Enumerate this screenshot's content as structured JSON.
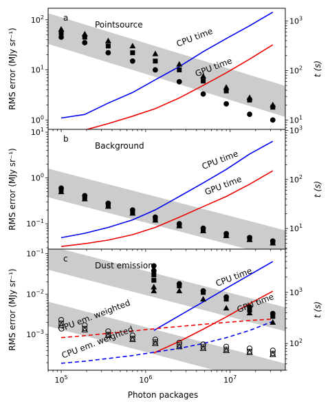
{
  "chart_data": {
    "type": "scatter",
    "x_label": "Photon packages",
    "x_scale": "log",
    "x_range": [
      70000,
      45000000
    ],
    "x_ticks": [
      {
        "value": 100000,
        "label": "10^5"
      },
      {
        "value": 1000000,
        "label": "10^6"
      },
      {
        "value": 10000000,
        "label": "10^7"
      }
    ],
    "colors": {
      "cpu": "#0000ee",
      "gpu": "#ee0000",
      "band": "#cccccc",
      "markers": "#000000"
    },
    "panels": [
      {
        "letter": "a",
        "title": "Pointsource",
        "ylabel_left": "RMS error (MJy sr⁻¹)",
        "ylabel_right": "t (s)",
        "y_left_range": [
          0.65,
          170
        ],
        "y_left_ticks": [
          {
            "value": 1,
            "label": "10^0"
          },
          {
            "value": 10,
            "label": "10^1"
          },
          {
            "value": 100,
            "label": "10^2"
          }
        ],
        "y_right_range": [
          6.5,
          1800
        ],
        "y_right_ticks": [
          {
            "value": 10,
            "label": "10^1"
          },
          {
            "value": 100,
            "label": "10^2"
          },
          {
            "value": 1000,
            "label": "10^3"
          }
        ],
        "band": {
          "x": [
            70000,
            45000000
          ],
          "upper": [
            135,
            4.8
          ],
          "lower": [
            33,
            1.15
          ]
        },
        "series": [
          {
            "name": "CPU time",
            "kind": "line",
            "axis": "right",
            "color": "cpu",
            "x": [
              100000,
              190000,
              360000,
              700000,
              1300000,
              2500000,
              4800000,
              9000000,
              17000000,
              32000000
            ],
            "y": [
              11,
              13,
              22,
              36,
              65,
              120,
              240,
              440,
              800,
              1500
            ]
          },
          {
            "name": "GPU time",
            "kind": "line",
            "axis": "right",
            "color": "gpu",
            "x": [
              100000,
              190000,
              360000,
              700000,
              1300000,
              2500000,
              4800000,
              9000000,
              17000000,
              32000000
            ],
            "y": [
              5.6,
              6.3,
              8.5,
              12,
              17,
              28,
              50,
              90,
              170,
              330
            ]
          },
          {
            "kind": "markers",
            "shape": "circle",
            "axis": "left",
            "x": [
              100000,
              190000,
              360000,
              700000,
              1300000,
              2500000,
              4800000,
              9000000,
              17000000,
              32000000
            ],
            "y": [
              45,
              35,
              22,
              15,
              10,
              5.8,
              3.3,
              2.1,
              1.3,
              1.0
            ]
          },
          {
            "kind": "markers",
            "shape": "square",
            "axis": "left",
            "x": [
              100000,
              190000,
              360000,
              700000,
              1300000,
              2500000,
              4800000,
              9000000,
              17000000,
              32000000
            ],
            "y": [
              55,
              45,
              30,
              22,
              15,
              10,
              6,
              3.8,
              2.5,
              1.8
            ]
          },
          {
            "kind": "markers",
            "shape": "triangle",
            "axis": "left",
            "x": [
              100000,
              190000,
              360000,
              700000,
              1300000,
              2500000,
              4800000,
              9000000,
              17000000,
              32000000
            ],
            "y": [
              65,
              52,
              38,
              30,
              21,
              13,
              7.5,
              4.5,
              2.8,
              2.0
            ]
          }
        ],
        "annotations": [
          {
            "text": "CPU time",
            "color": "cpu",
            "x": 2400000,
            "y": 300
          },
          {
            "text": "GPU time",
            "color": "gpu",
            "x": 4000000,
            "y": 75
          }
        ]
      },
      {
        "letter": "b",
        "title": "Background",
        "ylabel_left": "RMS error (MJy sr⁻¹)",
        "ylabel_right": "t (s)",
        "y_left_range": [
          0.028,
          11.5
        ],
        "y_left_ticks": [
          {
            "value": 0.1,
            "label": "10^-1"
          },
          {
            "value": 1,
            "label": "10^0"
          },
          {
            "value": 10,
            "label": "10^1"
          }
        ],
        "y_right_range": [
          3.8,
          1050
        ],
        "y_right_ticks": [
          {
            "value": 10,
            "label": "10^1"
          },
          {
            "value": 100,
            "label": "10^2"
          },
          {
            "value": 1000,
            "label": "10^3"
          }
        ],
        "band": {
          "x": [
            70000,
            45000000
          ],
          "upper": [
            1.6,
            0.072
          ],
          "lower": [
            0.38,
            0.017
          ]
        },
        "series": [
          {
            "name": "CPU time",
            "kind": "line",
            "axis": "right",
            "color": "cpu",
            "x": [
              100000,
              190000,
              360000,
              700000,
              1300000,
              2500000,
              4800000,
              9000000,
              17000000,
              32000000
            ],
            "y": [
              6.5,
              8,
              10.5,
              15,
              24,
              45,
              85,
              160,
              330,
              600
            ]
          },
          {
            "name": "GPU time",
            "kind": "line",
            "axis": "right",
            "color": "gpu",
            "x": [
              100000,
              190000,
              360000,
              700000,
              1300000,
              2500000,
              4800000,
              9000000,
              17000000,
              32000000
            ],
            "y": [
              4.3,
              4.9,
              5.8,
              7.5,
              10.5,
              17,
              28,
              45,
              80,
              150
            ]
          },
          {
            "kind": "markers",
            "shape": "circle",
            "axis": "left",
            "x": [
              100000,
              190000,
              360000,
              700000,
              1300000,
              2500000,
              4800000,
              9000000,
              17000000,
              32000000
            ],
            "y": [
              0.6,
              0.41,
              0.28,
              0.2,
              0.14,
              0.1,
              0.08,
              0.061,
              0.05,
              0.042
            ]
          },
          {
            "kind": "markers",
            "shape": "square",
            "axis": "left",
            "x": [
              100000,
              190000,
              360000,
              700000,
              1300000,
              2500000,
              4800000,
              9000000,
              17000000,
              32000000
            ],
            "y": [
              0.55,
              0.38,
              0.26,
              0.18,
              0.13,
              0.095,
              0.075,
              0.058,
              0.048,
              0.04
            ]
          },
          {
            "kind": "markers",
            "shape": "triangle",
            "axis": "left",
            "x": [
              100000,
              190000,
              360000,
              700000,
              1300000,
              2500000,
              4800000,
              9000000,
              17000000,
              32000000
            ],
            "y": [
              0.5,
              0.35,
              0.24,
              0.17,
              0.12,
              0.09,
              0.07,
              0.055,
              0.045,
              0.038
            ]
          }
        ],
        "annotations": [
          {
            "text": "CPU time",
            "color": "cpu",
            "x": 4800000,
            "y": 160
          },
          {
            "text": "GPU time",
            "color": "gpu",
            "x": 5200000,
            "y": 48
          }
        ]
      },
      {
        "letter": "c",
        "title": "Dust emission",
        "ylabel_left": "RMS error (MJy sr⁻¹)",
        "ylabel_right": "t (s)",
        "y_left_range": [
          0.00013,
          0.13
        ],
        "y_left_ticks": [
          {
            "value": 0.001,
            "label": "10^-3"
          },
          {
            "value": 0.01,
            "label": "10^-2"
          },
          {
            "value": 0.1,
            "label": "10^-1"
          }
        ],
        "y_right_range": [
          30,
          7000
        ],
        "y_right_ticks": [
          {
            "value": 100,
            "label": "10^2"
          },
          {
            "value": 1000,
            "label": "10^3"
          }
        ],
        "bands": [
          {
            "x": [
              70000,
              45000000
            ],
            "upper": [
              0.16,
              0.0047
            ],
            "lower": [
              0.04,
              0.0012
            ]
          },
          {
            "x": [
              70000,
              45000000
            ],
            "upper": [
              0.0065,
              0.00019
            ],
            "lower": [
              0.0016,
              4.5e-05
            ]
          }
        ],
        "series": [
          {
            "name": "CPU time",
            "kind": "line",
            "axis": "right",
            "color": "cpu",
            "x": [
              1250000,
              2500000,
              4800000,
              9000000,
              17000000,
              32000000
            ],
            "y": [
              180,
              350,
              650,
              1200,
              2200,
              4000
            ]
          },
          {
            "name": "GPU time",
            "kind": "line",
            "axis": "right",
            "color": "gpu",
            "x": [
              1250000,
              2500000,
              4800000,
              9000000,
              17000000,
              32000000
            ],
            "y": [
              65,
              110,
              190,
              330,
              600,
              1050
            ]
          },
          {
            "name": "GPU em. weighted",
            "kind": "dashed",
            "axis": "right",
            "color": "gpu",
            "x": [
              100000,
              190000,
              360000,
              700000,
              1300000,
              2500000,
              4800000,
              9000000,
              17000000,
              32000000
            ],
            "y": [
              130,
              142,
              158,
              175,
              195,
              215,
              237,
              258,
              282,
              300
            ]
          },
          {
            "name": "CPU em. weighted",
            "kind": "dashed",
            "axis": "right",
            "color": "cpu",
            "x": [
              100000,
              190000,
              360000,
              700000,
              1300000,
              2500000,
              4800000,
              9000000,
              17000000,
              32000000
            ],
            "y": [
              41,
              45,
              51,
              58,
              68,
              80,
              100,
              130,
              180,
              270
            ]
          },
          {
            "kind": "markers",
            "shape": "circle",
            "axis": "left",
            "x": [
              1250000,
              1250000,
              2500000,
              4800000,
              9000000,
              17000000,
              32000000
            ],
            "y": [
              0.05,
              0.038,
              0.018,
              0.012,
              0.0085,
              0.0048,
              0.0033
            ]
          },
          {
            "kind": "markers",
            "shape": "square",
            "axis": "left",
            "x": [
              1250000,
              1250000,
              2500000,
              4800000,
              9000000,
              17000000,
              32000000
            ],
            "y": [
              0.03,
              0.022,
              0.016,
              0.011,
              0.0075,
              0.004,
              0.0028
            ]
          },
          {
            "kind": "markers",
            "shape": "triangle",
            "axis": "left",
            "x": [
              1250000,
              1250000,
              2500000,
              4800000,
              9000000,
              17000000,
              32000000
            ],
            "y": [
              0.015,
              0.012,
              0.012,
              0.0075,
              0.0045,
              0.0034,
              0.002
            ]
          },
          {
            "kind": "markers",
            "shape": "open-circle",
            "axis": "left",
            "x": [
              100000,
              190000,
              360000,
              700000,
              1300000,
              2500000,
              4800000,
              9000000,
              17000000,
              32000000
            ],
            "y": [
              0.0023,
              0.0017,
              0.0012,
              0.00095,
              0.00075,
              0.00063,
              0.00057,
              0.0005,
              0.00045,
              0.0004
            ]
          },
          {
            "kind": "markers",
            "shape": "open-square",
            "axis": "left",
            "x": [
              100000,
              190000,
              360000,
              700000,
              1300000,
              2500000,
              4800000,
              9000000,
              17000000,
              32000000
            ],
            "y": [
              0.0019,
              0.0014,
              0.001,
              0.0008,
              0.00065,
              0.00055,
              0.00049,
              0.00043,
              0.00038,
              0.00034
            ]
          },
          {
            "kind": "markers",
            "shape": "open-triangle",
            "axis": "left",
            "x": [
              100000,
              190000,
              360000,
              700000,
              1300000,
              2500000,
              4800000,
              9000000,
              17000000,
              32000000
            ],
            "y": [
              0.0017,
              0.0013,
              0.00095,
              0.00075,
              0.0006,
              0.0005,
              0.00045,
              0.0004,
              0.00036,
              0.00032
            ]
          }
        ],
        "annotations": [
          {
            "text": "CPU time",
            "color": "cpu",
            "x": 7000000,
            "y": 1300
          },
          {
            "text": "GPU time",
            "color": "gpu",
            "x": 12500000,
            "y": 400
          },
          {
            "text": "GPU em. weighted",
            "color": "gpu",
            "x": 95000,
            "y": 165
          },
          {
            "text": "CPU em. weighted",
            "color": "cpu",
            "x": 105000,
            "y": 51
          }
        ]
      }
    ]
  }
}
